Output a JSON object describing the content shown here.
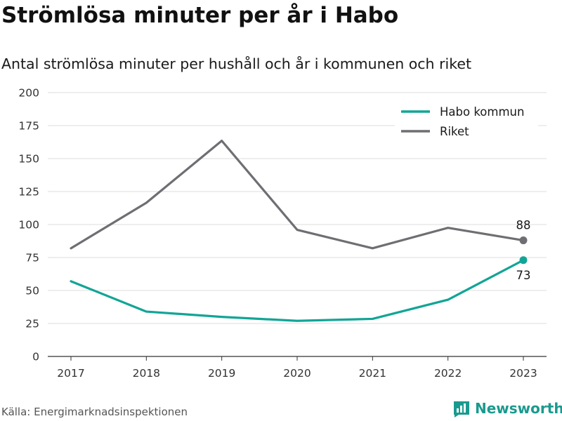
{
  "title": "Strömlösa minuter per år i Habo",
  "subtitle": "Antal strömlösa minuter per hushåll och år i kommunen och riket",
  "source": "Källa: Energimarknadsinspektionen",
  "brand": {
    "name": "Newsworthy",
    "icon": "bar-chart-logo-icon",
    "color": "#1a9a8e"
  },
  "chart_data": {
    "type": "line",
    "x": [
      "2017",
      "2018",
      "2019",
      "2020",
      "2021",
      "2022",
      "2023"
    ],
    "ylim": [
      0,
      200
    ],
    "yticks": [
      0,
      25,
      50,
      75,
      100,
      125,
      150,
      175,
      200
    ],
    "grid": true,
    "legend_position": "top-right",
    "series": [
      {
        "name": "Habo kommun",
        "color": "#12a596",
        "values": [
          57,
          34,
          30,
          27,
          28.5,
          43,
          73
        ]
      },
      {
        "name": "Riket",
        "color": "#6e6e73",
        "values": [
          82,
          116.5,
          163.5,
          96,
          82,
          97.5,
          88
        ]
      }
    ],
    "end_labels": [
      "73",
      "88"
    ]
  }
}
